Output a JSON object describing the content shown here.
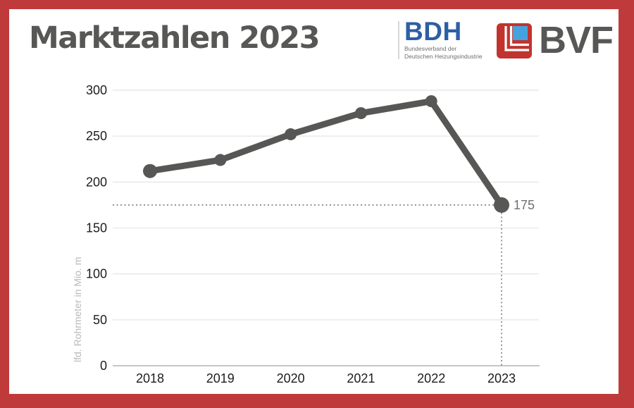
{
  "frame": {
    "border_color": "#bf3a3a",
    "background": "#ffffff"
  },
  "header": {
    "title": "Marktzahlen 2023",
    "logos": {
      "bdh": {
        "acronym": "BDH",
        "subtitle_line1": "Bundesverband der",
        "subtitle_line2": "Deutschen Heizungsindustrie",
        "acronym_color": "#2c5fa5",
        "subtitle_color": "#6f6f6e"
      },
      "bvf": {
        "acronym": "BVF",
        "icon_red": "#c1332e",
        "icon_blue": "#44a3de",
        "text_color": "#575756"
      }
    }
  },
  "chart_data": {
    "type": "line",
    "title": "Marktzahlen 2023",
    "categories": [
      "2018",
      "2019",
      "2020",
      "2021",
      "2022",
      "2023"
    ],
    "series": [
      {
        "name": "lfd. Rohrmeter in Mio. m",
        "values": [
          212,
          224,
          252,
          275,
          288,
          175
        ]
      }
    ],
    "xlabel": "",
    "ylabel": "lfd. Rohrmeter in Mio. m",
    "ylim": [
      0,
      300
    ],
    "yticks": [
      0,
      50,
      100,
      150,
      200,
      250,
      300
    ],
    "grid": true,
    "legend": false,
    "line_color": "#575756",
    "gridline_color": "#e9e9e9",
    "axis_color": "#b3b3b3",
    "annotation": {
      "category": "2023",
      "value": 175,
      "label": "175",
      "style": "dotted-crosshair",
      "label_color": "#707070"
    }
  }
}
